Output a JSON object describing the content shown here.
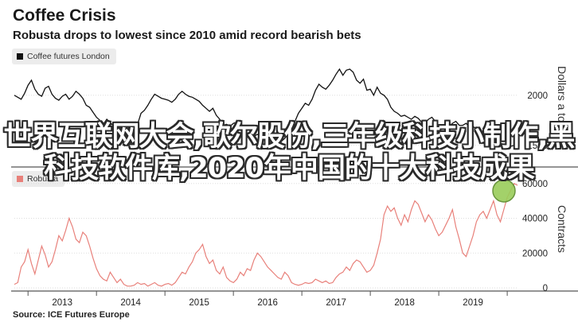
{
  "title": "Coffee Crisis",
  "subtitle": "Robusta drops to lowest since 2010 amid record bearish bets",
  "source": "Source: ICE Futures Europe",
  "overlay_text": "世界互联网大会,歌尔股份,三年级科技小制作,黑科技软件库,2020年中国的十大科技成果",
  "colors": {
    "price_line": "#111111",
    "contracts_line": "#e8807a",
    "marker_fill": "#9acd5a",
    "marker_stroke": "#5a8a2a"
  },
  "chart_data": [
    {
      "type": "line",
      "legend": "Coffee futures London",
      "ylabel": "Dollars a ton",
      "y_ticks": [
        "1500",
        "2000"
      ],
      "y_tick_values": [
        1500,
        2000
      ],
      "ylim": [
        1300,
        2300
      ],
      "xlim": [
        2012.3,
        2019.65
      ],
      "x": [
        2012.3,
        2012.35,
        2012.4,
        2012.45,
        2012.5,
        2012.55,
        2012.6,
        2012.65,
        2012.7,
        2012.75,
        2012.8,
        2012.85,
        2012.9,
        2012.95,
        2013.0,
        2013.05,
        2013.1,
        2013.15,
        2013.2,
        2013.25,
        2013.3,
        2013.35,
        2013.4,
        2013.45,
        2013.5,
        2013.55,
        2013.6,
        2013.65,
        2013.7,
        2013.75,
        2013.8,
        2013.85,
        2013.9,
        2013.95,
        2014.0,
        2014.05,
        2014.1,
        2014.15,
        2014.2,
        2014.25,
        2014.3,
        2014.35,
        2014.4,
        2014.45,
        2014.5,
        2014.55,
        2014.6,
        2014.65,
        2014.7,
        2014.75,
        2014.8,
        2014.85,
        2014.9,
        2014.95,
        2015.0,
        2015.05,
        2015.1,
        2015.15,
        2015.2,
        2015.25,
        2015.3,
        2015.35,
        2015.4,
        2015.45,
        2015.5,
        2015.55,
        2015.6,
        2015.65,
        2015.7,
        2015.75,
        2015.8,
        2015.85,
        2015.9,
        2015.95,
        2016.0,
        2016.05,
        2016.1,
        2016.15,
        2016.2,
        2016.25,
        2016.3,
        2016.35,
        2016.4,
        2016.45,
        2016.5,
        2016.55,
        2016.6,
        2016.65,
        2016.7,
        2016.75,
        2016.8,
        2016.85,
        2016.9,
        2016.95,
        2017.0,
        2017.05,
        2017.1,
        2017.15,
        2017.2,
        2017.25,
        2017.3,
        2017.35,
        2017.4,
        2017.45,
        2017.5,
        2017.55,
        2017.6,
        2017.65,
        2017.7,
        2017.75,
        2017.8,
        2017.85,
        2017.9,
        2017.95,
        2018.0,
        2018.05,
        2018.1,
        2018.15,
        2018.2,
        2018.25,
        2018.3,
        2018.35,
        2018.4,
        2018.45,
        2018.5,
        2018.55,
        2018.6,
        2018.65,
        2018.7,
        2018.75,
        2018.8,
        2018.85,
        2018.9,
        2018.95,
        2019.0,
        2019.05,
        2019.1,
        2019.15,
        2019.2,
        2019.25,
        2019.3,
        2019.35,
        2019.4,
        2019.45,
        2019.5,
        2019.55,
        2019.6,
        2019.65
      ],
      "y": [
        2000,
        1980,
        1960,
        2020,
        2100,
        2150,
        2060,
        2010,
        1990,
        2070,
        2090,
        2010,
        1970,
        1950,
        1990,
        2010,
        1960,
        1990,
        2040,
        2010,
        1970,
        1900,
        1880,
        1830,
        1780,
        1750,
        1710,
        1760,
        1730,
        1690,
        1660,
        1700,
        1660,
        1640,
        1630,
        1680,
        1710,
        1820,
        1850,
        1900,
        1960,
        2010,
        1990,
        1970,
        1960,
        1950,
        1930,
        1960,
        2010,
        2040,
        2010,
        1990,
        1980,
        1960,
        1940,
        1900,
        1870,
        1840,
        1870,
        1800,
        1760,
        1700,
        1710,
        1690,
        1720,
        1730,
        1690,
        1650,
        1600,
        1550,
        1590,
        1610,
        1580,
        1570,
        1500,
        1490,
        1520,
        1520,
        1540,
        1570,
        1610,
        1660,
        1740,
        1820,
        1870,
        1920,
        1900,
        1960,
        2050,
        2110,
        2080,
        2060,
        2100,
        2150,
        2210,
        2260,
        2200,
        2250,
        2260,
        2230,
        2150,
        2120,
        2160,
        2050,
        2060,
        2000,
        2080,
        2020,
        2000,
        1960,
        1880,
        1840,
        1820,
        1790,
        1800,
        1780,
        1760,
        1790,
        1770,
        1730,
        1720,
        1760,
        1780,
        1740,
        1690,
        1680,
        1720,
        1690,
        1720,
        1740,
        1700,
        1700,
        1720,
        1680,
        1690,
        1660,
        1640,
        1640,
        1610,
        1600,
        1570,
        1560,
        1520,
        1510,
        1500,
        1490,
        1500,
        1490
      ]
    },
    {
      "type": "line",
      "legend": "Robusta",
      "ylabel": "Contracts",
      "y_ticks": [
        "0",
        "20000",
        "40000",
        "60000"
      ],
      "y_tick_values": [
        0,
        20000,
        40000,
        60000
      ],
      "ylim": [
        0,
        64000
      ],
      "xlim": [
        2012.3,
        2019.65
      ],
      "x_ticks": [
        "2013",
        "2014",
        "2015",
        "2016",
        "2017",
        "2018",
        "2019"
      ],
      "x_tick_values": [
        2013,
        2014,
        2015,
        2016,
        2017,
        2018,
        2019
      ],
      "x": [
        2012.3,
        2012.35,
        2012.4,
        2012.45,
        2012.5,
        2012.55,
        2012.6,
        2012.65,
        2012.7,
        2012.75,
        2012.8,
        2012.85,
        2012.9,
        2012.95,
        2013.0,
        2013.05,
        2013.1,
        2013.15,
        2013.2,
        2013.25,
        2013.3,
        2013.35,
        2013.4,
        2013.45,
        2013.5,
        2013.55,
        2013.6,
        2013.65,
        2013.7,
        2013.75,
        2013.8,
        2013.85,
        2013.9,
        2013.95,
        2014.0,
        2014.05,
        2014.1,
        2014.15,
        2014.2,
        2014.25,
        2014.3,
        2014.35,
        2014.4,
        2014.45,
        2014.5,
        2014.55,
        2014.6,
        2014.65,
        2014.7,
        2014.75,
        2014.8,
        2014.85,
        2014.9,
        2014.95,
        2015.0,
        2015.05,
        2015.1,
        2015.15,
        2015.2,
        2015.25,
        2015.3,
        2015.35,
        2015.4,
        2015.45,
        2015.5,
        2015.55,
        2015.6,
        2015.65,
        2015.7,
        2015.75,
        2015.8,
        2015.85,
        2015.9,
        2015.95,
        2016.0,
        2016.05,
        2016.1,
        2016.15,
        2016.2,
        2016.25,
        2016.3,
        2016.35,
        2016.4,
        2016.45,
        2016.5,
        2016.55,
        2016.6,
        2016.65,
        2016.7,
        2016.75,
        2016.8,
        2016.85,
        2016.9,
        2016.95,
        2017.0,
        2017.05,
        2017.1,
        2017.15,
        2017.2,
        2017.25,
        2017.3,
        2017.35,
        2017.4,
        2017.45,
        2017.5,
        2017.55,
        2017.6,
        2017.65,
        2017.7,
        2017.75,
        2017.8,
        2017.85,
        2017.9,
        2017.95,
        2018.0,
        2018.05,
        2018.1,
        2018.15,
        2018.2,
        2018.25,
        2018.3,
        2018.35,
        2018.4,
        2018.45,
        2018.5,
        2018.55,
        2018.6,
        2018.65,
        2018.7,
        2018.75,
        2018.8,
        2018.85,
        2018.9,
        2018.95,
        2019.0,
        2019.05,
        2019.1,
        2019.15,
        2019.2,
        2019.25,
        2019.3,
        2019.35,
        2019.4,
        2019.45,
        2019.5,
        2019.55,
        2019.6,
        2019.65
      ],
      "y": [
        2000,
        3000,
        12000,
        15000,
        22000,
        14000,
        8000,
        16000,
        24000,
        19000,
        12000,
        15000,
        22000,
        30000,
        27000,
        33000,
        40000,
        35000,
        28000,
        26000,
        32000,
        30000,
        24000,
        17000,
        11000,
        7000,
        5000,
        4000,
        9000,
        6000,
        3000,
        5000,
        2000,
        1000,
        1000,
        1500,
        3000,
        2000,
        2500,
        1000,
        2000,
        3000,
        1500,
        1000,
        2000,
        2500,
        1500,
        3000,
        6000,
        9000,
        8000,
        12000,
        15000,
        20000,
        22000,
        25000,
        18000,
        14000,
        16000,
        10000,
        8000,
        12000,
        6000,
        4000,
        3000,
        5000,
        9000,
        7000,
        11000,
        10000,
        16000,
        20000,
        18000,
        15000,
        12000,
        10000,
        8000,
        6000,
        5000,
        9000,
        7000,
        3000,
        2000,
        1500,
        2000,
        3000,
        2500,
        3000,
        5000,
        4000,
        3000,
        4000,
        2500,
        3000,
        6000,
        8000,
        9000,
        12000,
        10000,
        14000,
        16000,
        15000,
        12000,
        9000,
        10000,
        13000,
        20000,
        28000,
        42000,
        47000,
        44000,
        46000,
        40000,
        36000,
        42000,
        38000,
        45000,
        50000,
        48000,
        43000,
        38000,
        42000,
        39000,
        34000,
        30000,
        32000,
        36000,
        40000,
        45000,
        35000,
        28000,
        20000,
        18000,
        24000,
        30000,
        38000,
        42000,
        44000,
        40000,
        45000,
        50000,
        42000,
        38000,
        45000,
        52000,
        56000,
        60000,
        59000
      ]
    }
  ]
}
